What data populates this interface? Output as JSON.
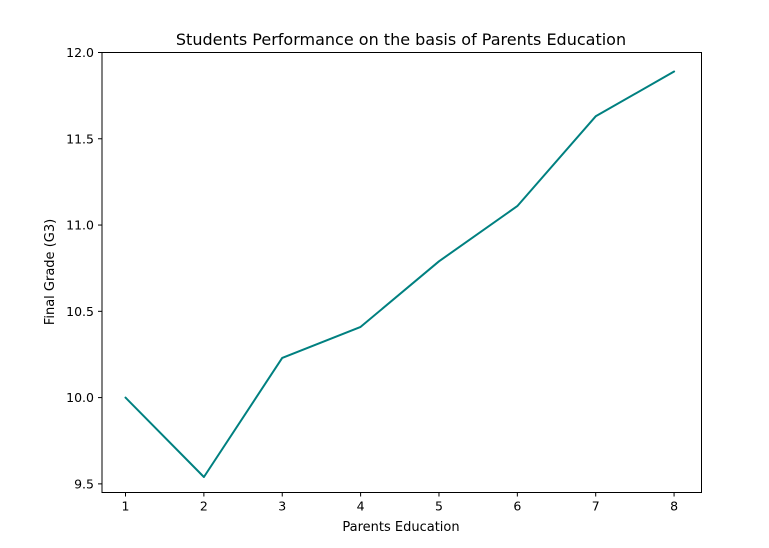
{
  "chart_data": {
    "type": "line",
    "title": "Students Performance on the basis of Parents Education",
    "xlabel": "Parents Education",
    "ylabel": "Final Grade (G3)",
    "xlim": [
      0.7,
      8.35
    ],
    "ylim": [
      9.45,
      12.0
    ],
    "xticks": [
      1,
      2,
      3,
      4,
      5,
      6,
      7,
      8
    ],
    "xtick_labels": [
      "1",
      "2",
      "3",
      "4",
      "5",
      "6",
      "7",
      "8"
    ],
    "yticks": [
      9.5,
      10.0,
      10.5,
      11.0,
      11.5,
      12.0
    ],
    "ytick_labels": [
      "9.5",
      "10.0",
      "10.5",
      "11.0",
      "11.5",
      "12.0"
    ],
    "grid": false,
    "series": [
      {
        "color": "#008080",
        "x": [
          1,
          2,
          3,
          4,
          5,
          6,
          7,
          8
        ],
        "values": [
          10.0,
          9.54,
          10.23,
          10.41,
          10.79,
          11.11,
          11.63,
          11.89
        ]
      }
    ]
  }
}
